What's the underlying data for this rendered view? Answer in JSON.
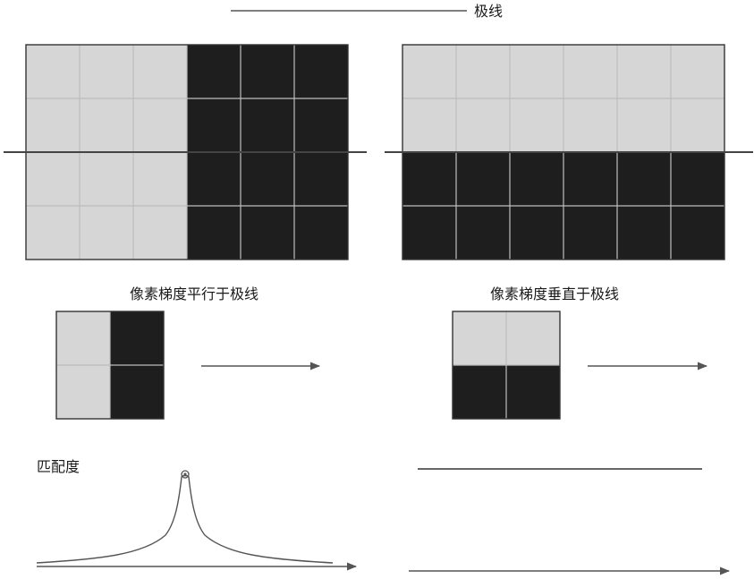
{
  "labels": {
    "epipolar": "极线",
    "parallel": "像素梯度平行于极线",
    "perpendicular": "像素梯度垂直于极线",
    "match": "匹配度"
  },
  "colors": {
    "light": "#d6d6d6",
    "dark": "#1e1e1e",
    "grid": "#bdbdbd",
    "line": "#555555"
  }
}
